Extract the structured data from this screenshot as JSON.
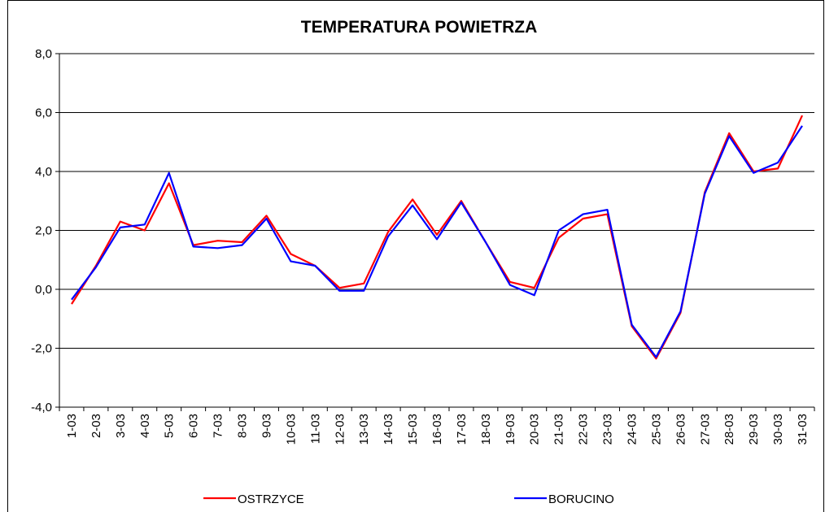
{
  "chart_data": {
    "type": "line",
    "title": "TEMPERATURA POWIETRZA",
    "categories": [
      "1-03",
      "2-03",
      "3-03",
      "4-03",
      "5-03",
      "6-03",
      "7-03",
      "8-03",
      "9-03",
      "10-03",
      "11-03",
      "12-03",
      "13-03",
      "14-03",
      "15-03",
      "16-03",
      "17-03",
      "18-03",
      "19-03",
      "20-03",
      "21-03",
      "22-03",
      "23-03",
      "24-03",
      "25-03",
      "26-03",
      "27-03",
      "28-03",
      "29-03",
      "30-03",
      "31-03"
    ],
    "series": [
      {
        "name": "OSTRZYCE",
        "color": "#ff0000",
        "values": [
          -0.5,
          0.8,
          2.3,
          2.0,
          3.6,
          1.5,
          1.65,
          1.6,
          2.5,
          1.2,
          0.8,
          0.05,
          0.2,
          1.95,
          3.05,
          1.85,
          3.0,
          1.6,
          0.25,
          0.05,
          1.75,
          2.4,
          2.55,
          -1.25,
          -2.35,
          -0.8,
          3.3,
          5.3,
          4.0,
          4.1,
          5.9
        ]
      },
      {
        "name": "BORUCINO",
        "color": "#0000ff",
        "values": [
          -0.35,
          0.75,
          2.1,
          2.2,
          3.95,
          1.45,
          1.4,
          1.5,
          2.4,
          0.95,
          0.8,
          -0.05,
          -0.05,
          1.8,
          2.85,
          1.7,
          2.95,
          1.6,
          0.15,
          -0.2,
          2.0,
          2.55,
          2.7,
          -1.2,
          -2.3,
          -0.75,
          3.25,
          5.2,
          3.95,
          4.3,
          5.55
        ]
      }
    ],
    "ylim": [
      -4,
      8
    ],
    "yticks": [
      {
        "value": -4,
        "label": "-4,0"
      },
      {
        "value": -2,
        "label": "-2,0"
      },
      {
        "value": 0,
        "label": "0,0"
      },
      {
        "value": 2,
        "label": "2,0"
      },
      {
        "value": 4,
        "label": "4,0"
      },
      {
        "value": 6,
        "label": "6,0"
      },
      {
        "value": 8,
        "label": "8,0"
      }
    ],
    "grid": true,
    "legend": "bottom"
  }
}
